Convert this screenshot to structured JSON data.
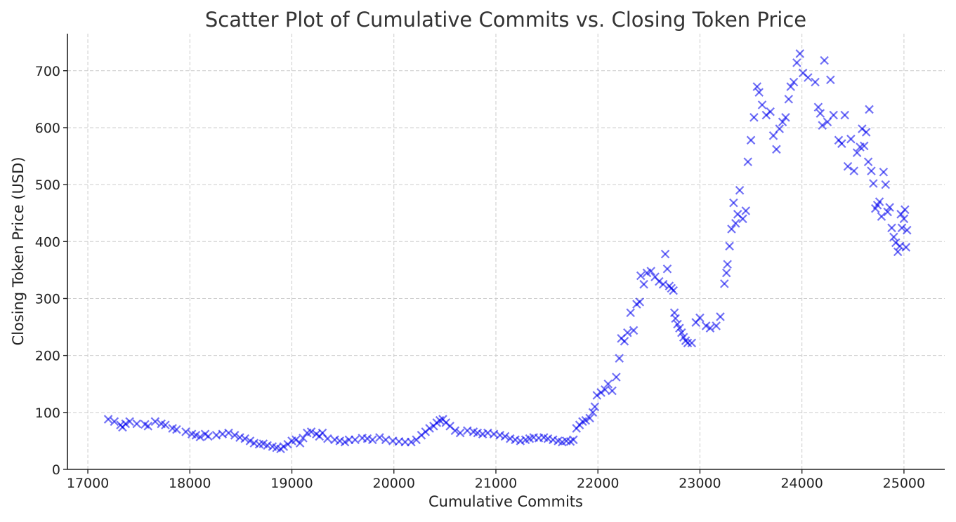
{
  "chart_data": {
    "type": "scatter",
    "title": "Scatter Plot of Cumulative Commits vs. Closing Token Price",
    "xlabel": "Cumulative Commits",
    "ylabel": "Closing Token Price (USD)",
    "xlim": [
      16800,
      25400
    ],
    "ylim": [
      0,
      765
    ],
    "xticks": [
      17000,
      18000,
      19000,
      20000,
      21000,
      22000,
      23000,
      24000,
      25000
    ],
    "yticks": [
      0,
      100,
      200,
      300,
      400,
      500,
      600,
      700
    ],
    "grid": true,
    "marker": "x",
    "color": "#0000ee",
    "opacity": 0.55,
    "points": [
      [
        17200,
        88
      ],
      [
        17260,
        84
      ],
      [
        17320,
        78
      ],
      [
        17340,
        74
      ],
      [
        17370,
        80
      ],
      [
        17410,
        84
      ],
      [
        17480,
        80
      ],
      [
        17560,
        79
      ],
      [
        17590,
        76
      ],
      [
        17660,
        84
      ],
      [
        17720,
        80
      ],
      [
        17760,
        78
      ],
      [
        17830,
        72
      ],
      [
        17870,
        70
      ],
      [
        17960,
        66
      ],
      [
        18020,
        62
      ],
      [
        18060,
        60
      ],
      [
        18100,
        57
      ],
      [
        18150,
        62
      ],
      [
        18180,
        58
      ],
      [
        18260,
        60
      ],
      [
        18320,
        62
      ],
      [
        18380,
        64
      ],
      [
        18440,
        60
      ],
      [
        18490,
        56
      ],
      [
        18540,
        54
      ],
      [
        18590,
        50
      ],
      [
        18630,
        46
      ],
      [
        18680,
        44
      ],
      [
        18720,
        45
      ],
      [
        18760,
        42
      ],
      [
        18810,
        40
      ],
      [
        18850,
        38
      ],
      [
        18890,
        36
      ],
      [
        18920,
        40
      ],
      [
        18960,
        44
      ],
      [
        19000,
        50
      ],
      [
        19040,
        52
      ],
      [
        19080,
        46
      ],
      [
        19110,
        55
      ],
      [
        19150,
        64
      ],
      [
        19190,
        66
      ],
      [
        19240,
        62
      ],
      [
        19270,
        58
      ],
      [
        19300,
        64
      ],
      [
        19350,
        54
      ],
      [
        19420,
        52
      ],
      [
        19470,
        50
      ],
      [
        19520,
        48
      ],
      [
        19560,
        52
      ],
      [
        19620,
        52
      ],
      [
        19690,
        55
      ],
      [
        19740,
        54
      ],
      [
        19790,
        52
      ],
      [
        19860,
        56
      ],
      [
        19920,
        52
      ],
      [
        19990,
        50
      ],
      [
        20050,
        49
      ],
      [
        20110,
        48
      ],
      [
        20170,
        48
      ],
      [
        20220,
        52
      ],
      [
        20270,
        60
      ],
      [
        20310,
        66
      ],
      [
        20350,
        72
      ],
      [
        20390,
        76
      ],
      [
        20420,
        82
      ],
      [
        20450,
        86
      ],
      [
        20480,
        88
      ],
      [
        20510,
        82
      ],
      [
        20550,
        76
      ],
      [
        20600,
        68
      ],
      [
        20650,
        64
      ],
      [
        20720,
        68
      ],
      [
        20780,
        66
      ],
      [
        20820,
        64
      ],
      [
        20870,
        62
      ],
      [
        20920,
        64
      ],
      [
        20980,
        62
      ],
      [
        21040,
        60
      ],
      [
        21090,
        58
      ],
      [
        21140,
        54
      ],
      [
        21190,
        52
      ],
      [
        21240,
        50
      ],
      [
        21290,
        52
      ],
      [
        21330,
        54
      ],
      [
        21370,
        56
      ],
      [
        21420,
        55
      ],
      [
        21470,
        56
      ],
      [
        21510,
        54
      ],
      [
        21560,
        52
      ],
      [
        21610,
        50
      ],
      [
        21650,
        48
      ],
      [
        21690,
        50
      ],
      [
        21730,
        49
      ],
      [
        21760,
        52
      ],
      [
        21790,
        72
      ],
      [
        21820,
        78
      ],
      [
        21850,
        84
      ],
      [
        21880,
        86
      ],
      [
        21920,
        90
      ],
      [
        21950,
        100
      ],
      [
        21970,
        110
      ],
      [
        21990,
        130
      ],
      [
        22030,
        135
      ],
      [
        22070,
        140
      ],
      [
        22100,
        150
      ],
      [
        22140,
        138
      ],
      [
        22180,
        162
      ],
      [
        22210,
        195
      ],
      [
        22230,
        230
      ],
      [
        22260,
        225
      ],
      [
        22290,
        240
      ],
      [
        22320,
        275
      ],
      [
        22350,
        244
      ],
      [
        22380,
        290
      ],
      [
        22410,
        294
      ],
      [
        22420,
        340
      ],
      [
        22450,
        325
      ],
      [
        22480,
        345
      ],
      [
        22520,
        348
      ],
      [
        22560,
        338
      ],
      [
        22600,
        330
      ],
      [
        22640,
        325
      ],
      [
        22660,
        378
      ],
      [
        22680,
        352
      ],
      [
        22700,
        322
      ],
      [
        22720,
        318
      ],
      [
        22740,
        314
      ],
      [
        22750,
        275
      ],
      [
        22760,
        265
      ],
      [
        22780,
        255
      ],
      [
        22800,
        248
      ],
      [
        22820,
        240
      ],
      [
        22840,
        232
      ],
      [
        22860,
        226
      ],
      [
        22880,
        222
      ],
      [
        22920,
        222
      ],
      [
        22960,
        258
      ],
      [
        23000,
        266
      ],
      [
        23060,
        252
      ],
      [
        23100,
        248
      ],
      [
        23160,
        252
      ],
      [
        23200,
        268
      ],
      [
        23240,
        326
      ],
      [
        23260,
        345
      ],
      [
        23270,
        360
      ],
      [
        23290,
        392
      ],
      [
        23310,
        422
      ],
      [
        23330,
        468
      ],
      [
        23350,
        432
      ],
      [
        23370,
        448
      ],
      [
        23390,
        490
      ],
      [
        23420,
        440
      ],
      [
        23450,
        454
      ],
      [
        23470,
        540
      ],
      [
        23500,
        578
      ],
      [
        23530,
        618
      ],
      [
        23560,
        672
      ],
      [
        23580,
        662
      ],
      [
        23610,
        640
      ],
      [
        23650,
        622
      ],
      [
        23690,
        628
      ],
      [
        23720,
        586
      ],
      [
        23750,
        562
      ],
      [
        23780,
        598
      ],
      [
        23810,
        610
      ],
      [
        23840,
        618
      ],
      [
        23870,
        650
      ],
      [
        23890,
        672
      ],
      [
        23920,
        680
      ],
      [
        23950,
        714
      ],
      [
        23980,
        730
      ],
      [
        24010,
        696
      ],
      [
        24060,
        688
      ],
      [
        24130,
        680
      ],
      [
        24160,
        636
      ],
      [
        24180,
        625
      ],
      [
        24200,
        604
      ],
      [
        24220,
        718
      ],
      [
        24250,
        610
      ],
      [
        24280,
        684
      ],
      [
        24310,
        622
      ],
      [
        24360,
        578
      ],
      [
        24390,
        572
      ],
      [
        24420,
        622
      ],
      [
        24450,
        532
      ],
      [
        24480,
        580
      ],
      [
        24510,
        524
      ],
      [
        24540,
        556
      ],
      [
        24570,
        566
      ],
      [
        24590,
        598
      ],
      [
        24610,
        568
      ],
      [
        24630,
        592
      ],
      [
        24650,
        540
      ],
      [
        24660,
        632
      ],
      [
        24680,
        524
      ],
      [
        24700,
        502
      ],
      [
        24720,
        458
      ],
      [
        24740,
        464
      ],
      [
        24760,
        470
      ],
      [
        24780,
        444
      ],
      [
        24800,
        522
      ],
      [
        24820,
        500
      ],
      [
        24840,
        452
      ],
      [
        24860,
        460
      ],
      [
        24880,
        424
      ],
      [
        24900,
        408
      ],
      [
        24920,
        398
      ],
      [
        24940,
        382
      ],
      [
        24960,
        392
      ],
      [
        24970,
        448
      ],
      [
        24980,
        424
      ],
      [
        25000,
        440
      ],
      [
        25010,
        456
      ],
      [
        25020,
        390
      ],
      [
        25030,
        420
      ]
    ]
  }
}
